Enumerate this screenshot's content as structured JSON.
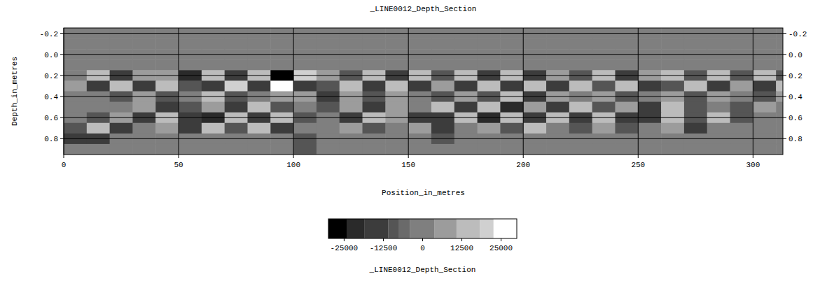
{
  "chart_data": {
    "type": "heatmap",
    "title": "_LINE0012_Depth_Section",
    "x_label": "Position_in_metres",
    "y_label": "Depth_in_metres",
    "xlim": [
      0,
      313
    ],
    "ylim": [
      0.95,
      -0.25
    ],
    "xticks": [
      0,
      50,
      100,
      150,
      200,
      250,
      300
    ],
    "yticks": [
      -0.2,
      {
        "value": 0,
        "label": "0.0"
      },
      0.2,
      0.4,
      0.6,
      0.8
    ],
    "grid": true,
    "x": [
      5,
      15,
      25,
      35,
      45,
      55,
      65,
      75,
      85,
      95,
      105,
      115,
      125,
      135,
      145,
      155,
      165,
      175,
      185,
      195,
      205,
      215,
      225,
      235,
      245,
      255,
      265,
      275,
      285,
      295,
      305,
      315
    ],
    "y": [
      -0.2,
      -0.1,
      0,
      0.1,
      0.2,
      0.3,
      0.4,
      0.5,
      0.6,
      0.7,
      0.8,
      0.9
    ],
    "cells": [
      [
        0,
        0,
        0,
        0,
        0,
        0,
        0,
        0,
        0,
        0,
        0,
        0,
        0,
        0,
        0,
        0,
        0,
        0,
        0,
        0,
        0,
        0,
        0,
        0,
        0,
        0,
        0,
        0,
        0,
        0,
        0,
        0
      ],
      [
        0,
        0,
        0,
        0,
        0,
        0,
        0,
        0,
        0,
        0,
        0,
        0,
        0,
        0,
        0,
        0,
        0,
        0,
        0,
        0,
        0,
        0,
        0,
        0,
        0,
        0,
        0,
        0,
        0,
        0,
        0,
        0
      ],
      [
        0,
        0,
        0,
        0,
        0,
        0,
        0,
        0,
        0,
        0,
        0,
        0,
        0,
        0,
        0,
        0,
        0,
        0,
        0,
        0,
        0,
        0,
        0,
        0,
        0,
        0,
        0,
        0,
        0,
        0,
        0,
        0
      ],
      [
        0,
        0,
        0,
        0,
        0,
        0,
        0,
        0,
        0,
        0,
        0,
        0,
        0,
        0,
        0,
        0,
        0,
        0,
        0,
        0,
        0,
        0,
        0,
        0,
        0,
        0,
        0,
        0,
        0,
        0,
        0,
        0
      ],
      [
        0,
        12000,
        -15000,
        10000,
        8000,
        -20000,
        15000,
        -12000,
        18000,
        -25000,
        20000,
        9000,
        -10000,
        14000,
        -16000,
        11000,
        -9000,
        13000,
        -12000,
        15000,
        -18000,
        10000,
        -8000,
        12000,
        -14000,
        9000,
        16000,
        -11000,
        13000,
        -10000,
        12000,
        -9000
      ],
      [
        10000,
        -14000,
        12000,
        -16000,
        14000,
        -10000,
        -18000,
        20000,
        -12000,
        24000,
        -15000,
        -10000,
        12000,
        -16000,
        14000,
        -12000,
        10000,
        -14000,
        16000,
        -12000,
        15000,
        -13000,
        14000,
        -10000,
        12000,
        -15000,
        -9000,
        14000,
        -12000,
        10000,
        -13000,
        11000
      ],
      [
        0,
        0,
        -8000,
        9000,
        -10000,
        0,
        12000,
        -9000,
        0,
        10000,
        8000,
        -12000,
        10000,
        -9000,
        8000,
        0,
        -10000,
        9000,
        -8000,
        11000,
        -12000,
        9000,
        0,
        10000,
        -9000,
        0,
        8000,
        -10000,
        9000,
        0,
        -8000,
        7000
      ],
      [
        0,
        0,
        0,
        8000,
        -12000,
        -10000,
        9000,
        -14000,
        12000,
        -10000,
        0,
        -8000,
        10000,
        -12000,
        9000,
        0,
        11000,
        -18000,
        15000,
        -20000,
        10000,
        -12000,
        14000,
        -10000,
        9000,
        -16000,
        12000,
        -10000,
        0,
        -8000,
        9000,
        0
      ],
      [
        0,
        -9000,
        10000,
        -12000,
        14000,
        -16000,
        -20000,
        15000,
        -14000,
        12000,
        -10000,
        0,
        -12000,
        14000,
        10000,
        -18000,
        -12000,
        16000,
        -20000,
        18000,
        -14000,
        12000,
        -16000,
        14000,
        -12000,
        -15000,
        18000,
        -10000,
        12000,
        -9000,
        0,
        0
      ],
      [
        -10000,
        12000,
        -14000,
        0,
        8000,
        -12000,
        14000,
        -10000,
        12000,
        -15000,
        0,
        0,
        8000,
        -10000,
        0,
        9000,
        -14000,
        0,
        10000,
        -8000,
        12000,
        0,
        -9000,
        8000,
        -10000,
        0,
        9000,
        -12000,
        0,
        0,
        0,
        0
      ],
      [
        -18000,
        -14000,
        0,
        0,
        0,
        0,
        0,
        0,
        0,
        0,
        -9000,
        0,
        0,
        0,
        0,
        0,
        -10000,
        0,
        0,
        0,
        0,
        0,
        0,
        0,
        0,
        0,
        0,
        0,
        0,
        0,
        0,
        0
      ],
      [
        0,
        0,
        0,
        0,
        0,
        0,
        0,
        0,
        0,
        0,
        -8000,
        0,
        0,
        0,
        0,
        0,
        0,
        0,
        0,
        0,
        0,
        0,
        0,
        0,
        0,
        0,
        0,
        0,
        0,
        0,
        0,
        0
      ]
    ],
    "colorbar": {
      "label": "_LINE0012_Depth_Section",
      "range": [
        -30000,
        30000
      ],
      "ticks": [
        -25000,
        -12500,
        0,
        12500,
        25000
      ],
      "levels": [
        -30000,
        -24200,
        -18600,
        -11000,
        -7500,
        -4100,
        3700,
        10800,
        18200,
        22600,
        30000
      ],
      "colors": [
        "#000000",
        "#2a2a2a",
        "#3c3c3c",
        "#555555",
        "#6a6a6a",
        "#7f7f7f",
        "#9c9c9c",
        "#bcbcbc",
        "#d0d0d0",
        "#ffffff"
      ]
    }
  }
}
